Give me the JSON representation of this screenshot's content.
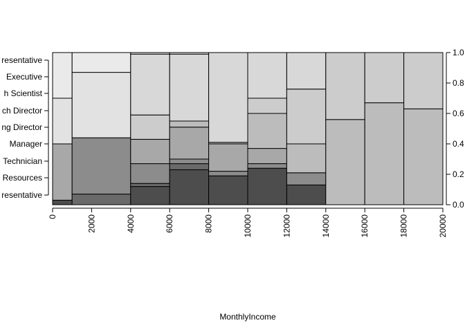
{
  "chart_data": {
    "type": "spineplot",
    "title": "",
    "xlabel": "MonthlyIncome",
    "ylabel": "",
    "xlim": [
      0,
      20000
    ],
    "ylim": [
      0,
      1
    ],
    "x_tick_labels": [
      "0",
      "2000",
      "4000",
      "6000",
      "8000",
      "10000",
      "12000",
      "14000",
      "16000",
      "18000",
      "20000"
    ],
    "x_tick_values": [
      0,
      2000,
      4000,
      6000,
      8000,
      10000,
      12000,
      14000,
      16000,
      18000,
      20000
    ],
    "y_tick_labels": [
      "0.0",
      "0.2",
      "0.4",
      "0.6",
      "0.8",
      "1.0"
    ],
    "y_tick_values": [
      0,
      0.2,
      0.4,
      0.6,
      0.8,
      1.0
    ],
    "categories": [
      "resentative",
      "Resources",
      "Technician",
      "Manager",
      "ng Director",
      "ch Director",
      "h Scientist",
      "Executive",
      "resentative"
    ],
    "category_colors": [
      "#4d4d4d",
      "#6a6a6a",
      "#8c8c8c",
      "#a8a8a8",
      "#bcbcbc",
      "#cccccc",
      "#d8d8d8",
      "#e2e2e2",
      "#eaeaea"
    ],
    "bins": [
      {
        "x0": 0,
        "x1": 1000,
        "cum": [
          0.03,
          0.03,
          0.03,
          0.4,
          0.4,
          0.4,
          0.4,
          0.7,
          1.0
        ]
      },
      {
        "x0": 1000,
        "x1": 4000,
        "cum": [
          0.0,
          0.07,
          0.44,
          0.44,
          0.44,
          0.44,
          0.44,
          0.87,
          1.0
        ]
      },
      {
        "x0": 4000,
        "x1": 6000,
        "cum": [
          0.12,
          0.14,
          0.27,
          0.43,
          0.43,
          0.59,
          0.99,
          0.99,
          1.0
        ]
      },
      {
        "x0": 6000,
        "x1": 8000,
        "cum": [
          0.23,
          0.27,
          0.3,
          0.51,
          0.55,
          0.55,
          0.99,
          0.99,
          1.0
        ]
      },
      {
        "x0": 8000,
        "x1": 10000,
        "cum": [
          0.19,
          0.19,
          0.22,
          0.4,
          0.41,
          0.41,
          1.0,
          1.0,
          1.0
        ]
      },
      {
        "x0": 10000,
        "x1": 12000,
        "cum": [
          0.24,
          0.24,
          0.27,
          0.37,
          0.6,
          0.7,
          1.0,
          1.0,
          1.0
        ]
      },
      {
        "x0": 12000,
        "x1": 14000,
        "cum": [
          0.13,
          0.13,
          0.21,
          0.21,
          0.4,
          0.76,
          1.0,
          1.0,
          1.0
        ]
      },
      {
        "x0": 14000,
        "x1": 16000,
        "cum": [
          0.0,
          0.0,
          0.0,
          0.0,
          0.56,
          1.0,
          1.0,
          1.0,
          1.0
        ]
      },
      {
        "x0": 16000,
        "x1": 18000,
        "cum": [
          0.0,
          0.0,
          0.0,
          0.0,
          0.67,
          1.0,
          1.0,
          1.0,
          1.0
        ]
      },
      {
        "x0": 18000,
        "x1": 20000,
        "cum": [
          0.0,
          0.0,
          0.0,
          0.0,
          0.63,
          1.0,
          1.0,
          1.0,
          1.0
        ]
      }
    ]
  }
}
